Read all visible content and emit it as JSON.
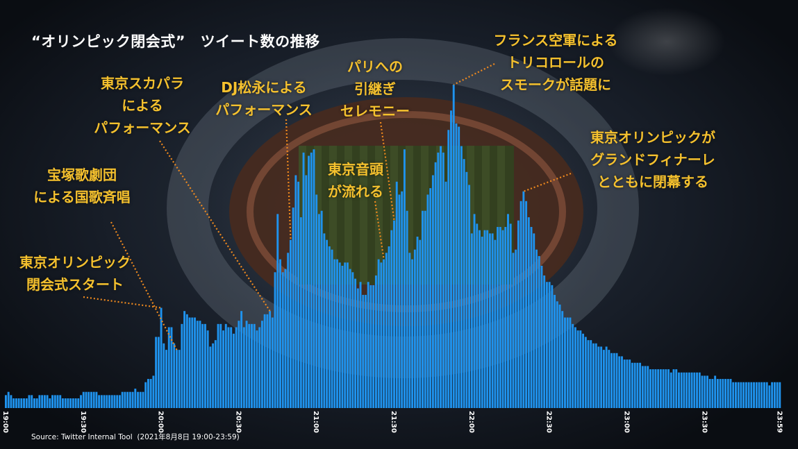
{
  "title": "“オリンピック閉会式”　ツイート数の推移",
  "source": "Source: Twitter Internal Tool  (2021年8月8日 19:00-23:59)",
  "colors": {
    "bar": "#1f93ee",
    "annotation": "#f5c12e",
    "leader": "#f08a1e",
    "title": "#ffffff"
  },
  "chart_data": {
    "type": "bar",
    "title": "“オリンピック閉会式”　ツイート数の推移",
    "xlabel": "",
    "ylabel": "",
    "x_range": [
      "19:00",
      "23:59"
    ],
    "x_interval": "1 minute",
    "y_axis_shown": false,
    "grid": false,
    "values_note_unit": "relative (peak = 100)",
    "tick_labels": [
      "19:00",
      "19:30",
      "20:00",
      "20:30",
      "21:00",
      "21:30",
      "22:00",
      "22:30",
      "23:00",
      "23:30",
      "23:59"
    ],
    "values": [
      4,
      5,
      4,
      3,
      3,
      3,
      3,
      3,
      3,
      4,
      4,
      3,
      3,
      4,
      4,
      4,
      4,
      3,
      4,
      4,
      4,
      4,
      3,
      3,
      3,
      3,
      3,
      3,
      3,
      4,
      5,
      5,
      5,
      5,
      5,
      5,
      4,
      4,
      4,
      4,
      4,
      4,
      4,
      4,
      4,
      5,
      5,
      5,
      5,
      5,
      6,
      5,
      5,
      5,
      8,
      9,
      9,
      10,
      22,
      22,
      31,
      20,
      18,
      25,
      25,
      20,
      18,
      18,
      26,
      30,
      29,
      28,
      28,
      28,
      27,
      27,
      26,
      26,
      24,
      19,
      20,
      21,
      26,
      26,
      24,
      26,
      25,
      25,
      23,
      25,
      27,
      30,
      25,
      27,
      26,
      26,
      26,
      24,
      25,
      27,
      29,
      29,
      30,
      28,
      42,
      60,
      46,
      42,
      43,
      48,
      52,
      62,
      72,
      70,
      59,
      79,
      72,
      78,
      79,
      80,
      66,
      60,
      61,
      54,
      52,
      50,
      49,
      46,
      46,
      45,
      44,
      45,
      45,
      43,
      42,
      40,
      37,
      39,
      35,
      35,
      39,
      38,
      38,
      41,
      46,
      45,
      46,
      48,
      50,
      55,
      58,
      70,
      66,
      67,
      80,
      61,
      48,
      46,
      49,
      53,
      52,
      61,
      61,
      66,
      68,
      72,
      76,
      79,
      81,
      79,
      70,
      86,
      92,
      100,
      88,
      87,
      81,
      77,
      73,
      69,
      54,
      60,
      57,
      55,
      53,
      55,
      55,
      54,
      54,
      52,
      56,
      56,
      55,
      56,
      60,
      57,
      48,
      49,
      58,
      64,
      67,
      64,
      59,
      56,
      54,
      49,
      47,
      44,
      41,
      39,
      39,
      38,
      35,
      33,
      32,
      30,
      28,
      28,
      28,
      26,
      25,
      24,
      24,
      23,
      22,
      21,
      21,
      20,
      20,
      19,
      19,
      18,
      19,
      18,
      17,
      17,
      17,
      16,
      16,
      15,
      15,
      15,
      14,
      14,
      14,
      14,
      13,
      13,
      13,
      12,
      12,
      12,
      12,
      12,
      12,
      12,
      12,
      11,
      12,
      12,
      11,
      11,
      11,
      11,
      11,
      11,
      11,
      11,
      11,
      10,
      10,
      10,
      9,
      9,
      10,
      9,
      9,
      9,
      9,
      9,
      9,
      8,
      8,
      8,
      8,
      8,
      8,
      8,
      8,
      8,
      8,
      8,
      8,
      8,
      8,
      7,
      8,
      8,
      8,
      8
    ],
    "annotations": [
      {
        "time": "20:00",
        "lines": [
          "東京オリンピック",
          "閉会式スタート"
        ]
      },
      {
        "time": "20:06",
        "lines": [
          "宝塚歌劇団",
          "による国歌斉唱"
        ]
      },
      {
        "time": "20:42",
        "lines": [
          "東京スカパラ",
          "による",
          "パフォーマンス"
        ]
      },
      {
        "time": "20:50",
        "lines": [
          "DJ松永による",
          "パフォーマンス"
        ]
      },
      {
        "time": "21:26",
        "lines": [
          "東京音頭",
          "が流れる"
        ]
      },
      {
        "time": "21:30",
        "lines": [
          "パリへの",
          "引継ぎ",
          "セレモニー"
        ]
      },
      {
        "time": "21:53",
        "lines": [
          "フランス空軍による",
          "トリコロールの",
          "スモークが話題に"
        ]
      },
      {
        "time": "22:20",
        "lines": [
          "東京オリンピックが",
          "グランドフィナーレ",
          "とともに閉幕する"
        ]
      }
    ]
  }
}
